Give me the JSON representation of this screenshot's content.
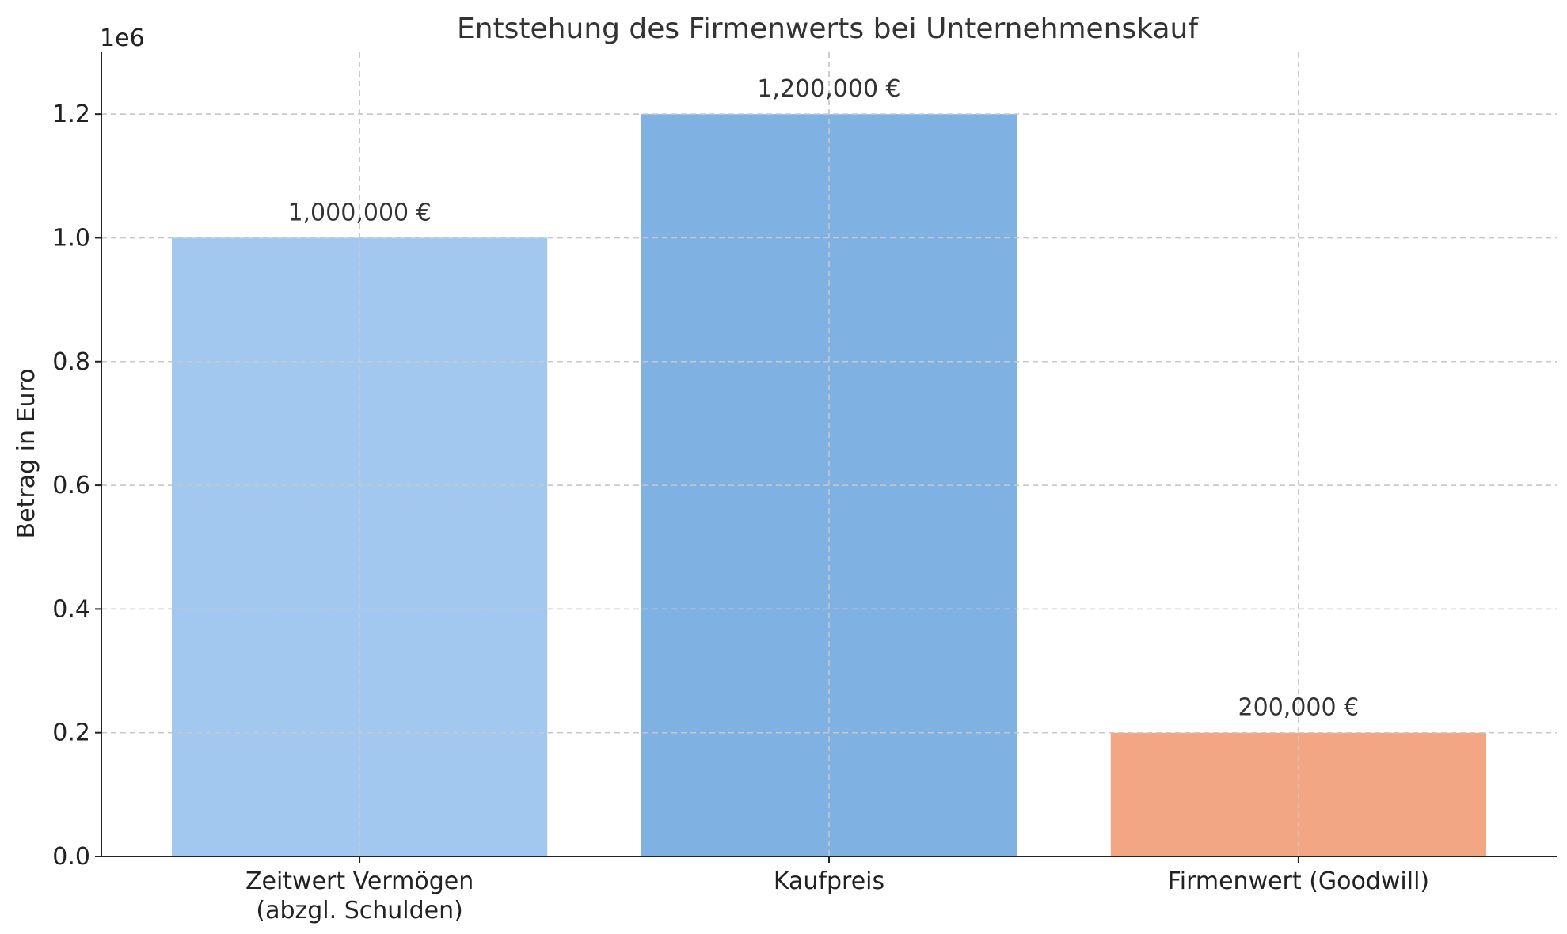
{
  "chart_data": {
    "type": "bar",
    "title": "Entstehung des Firmenwerts bei Unternehmenskauf",
    "xlabel": "",
    "ylabel": "Betrag in Euro",
    "offset_text": "1e6",
    "categories": [
      [
        "Zeitwert Vermögen",
        "(abzgl. Schulden)"
      ],
      [
        "Kaufpreis"
      ],
      [
        "Firmenwert (Goodwill)"
      ]
    ],
    "values": [
      1000000,
      1200000,
      200000
    ],
    "value_labels": [
      "1,000,000 €",
      "1,200,000 €",
      "200,000 €"
    ],
    "colors": [
      "#a3c8ef",
      "#80b1e3",
      "#f3a683"
    ],
    "ylim": [
      0,
      1300000
    ],
    "yticks": [
      0,
      200000,
      400000,
      600000,
      800000,
      1000000,
      1200000
    ],
    "ytick_labels": [
      "0.0",
      "0.2",
      "0.4",
      "0.6",
      "0.8",
      "1.0",
      "1.2"
    ],
    "grid": true,
    "grid_style": "dashed"
  }
}
